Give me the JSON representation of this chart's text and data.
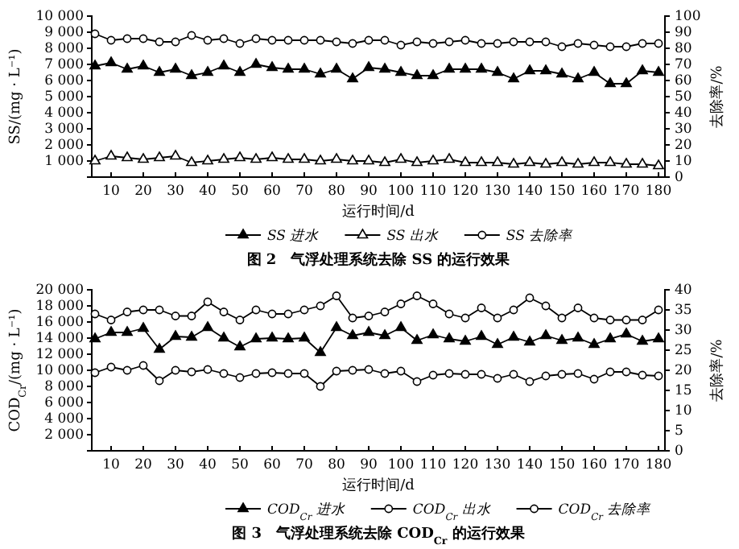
{
  "chart_data": [
    {
      "type": "line",
      "title": "图 2　气浮处理系统去除 SS 的运行效果",
      "xlabel": "运行时间/d",
      "ylabel": "SS/(mg · L⁻¹)",
      "y2label": "去除率/%",
      "x": [
        5,
        10,
        15,
        20,
        25,
        30,
        35,
        40,
        45,
        50,
        55,
        60,
        65,
        70,
        75,
        80,
        85,
        90,
        95,
        100,
        105,
        110,
        115,
        120,
        125,
        130,
        135,
        140,
        145,
        150,
        155,
        160,
        165,
        170,
        175,
        180
      ],
      "xlim": [
        4,
        182
      ],
      "xticks": [
        10,
        20,
        30,
        40,
        50,
        60,
        70,
        80,
        90,
        100,
        110,
        120,
        130,
        140,
        150,
        160,
        170,
        180
      ],
      "ylim": [
        0,
        10000
      ],
      "yticks": [
        {
          "value": 1000,
          "label": "1 000"
        },
        {
          "value": 2000,
          "label": "2 000"
        },
        {
          "value": 3000,
          "label": "3 000"
        },
        {
          "value": 4000,
          "label": "4 000"
        },
        {
          "value": 5000,
          "label": "5 000"
        },
        {
          "value": 6000,
          "label": "6 000"
        },
        {
          "value": 7000,
          "label": "7 000"
        },
        {
          "value": 8000,
          "label": "8 000"
        },
        {
          "value": 9000,
          "label": "9 000"
        },
        {
          "value": 10000,
          "label": "10 000"
        }
      ],
      "y2lim": [
        0,
        100
      ],
      "y2ticks": [
        0,
        10,
        20,
        30,
        40,
        50,
        60,
        70,
        80,
        90,
        100
      ],
      "legend": "bottom",
      "series": [
        {
          "name": "SS 进水",
          "color": "#000000",
          "marker": "triangle",
          "values": [
            6900,
            7100,
            6700,
            6900,
            6500,
            6700,
            6300,
            6500,
            6900,
            6500,
            7000,
            6800,
            6700,
            6700,
            6400,
            6700,
            6100,
            6800,
            6700,
            6500,
            6300,
            6300,
            6700,
            6700,
            6700,
            6500,
            6100,
            6600,
            6600,
            6400,
            6100,
            6500,
            5800,
            5800,
            6600,
            6500
          ]
        },
        {
          "name": "SS 出水",
          "color": "#000000",
          "marker": "triangle",
          "values": [
            1000,
            1300,
            1200,
            1100,
            1200,
            1300,
            900,
            1000,
            1100,
            1200,
            1100,
            1200,
            1100,
            1100,
            1000,
            1100,
            1000,
            1000,
            900,
            1100,
            900,
            1000,
            1100,
            900,
            900,
            900,
            800,
            900,
            800,
            900,
            800,
            900,
            900,
            800,
            800,
            700
          ]
        },
        {
          "name": "SS 去除率",
          "color": "#000000",
          "marker": "circle",
          "axis": "y2",
          "values": [
            89,
            85,
            86,
            86,
            84,
            84,
            88,
            85,
            86,
            83,
            86,
            85,
            85,
            85,
            85,
            84,
            83,
            85,
            85,
            82,
            84,
            83,
            84,
            85,
            83,
            83,
            84,
            84,
            84,
            81,
            83,
            82,
            81,
            81,
            83,
            83
          ]
        }
      ]
    },
    {
      "type": "line",
      "title": "图 3　气浮处理系统去除 COD$_{Cr}$ 的运行效果",
      "xlabel": "运行时间/d",
      "ylabel": "COD$_{Cr}$/(mg · L⁻¹)",
      "y2label": "去除率/%",
      "x": [
        5,
        10,
        15,
        20,
        25,
        30,
        35,
        40,
        45,
        50,
        55,
        60,
        65,
        70,
        75,
        80,
        85,
        90,
        95,
        100,
        105,
        110,
        115,
        120,
        125,
        130,
        135,
        140,
        145,
        150,
        155,
        160,
        165,
        170,
        175,
        180
      ],
      "xlim": [
        4,
        182
      ],
      "xticks": [
        10,
        20,
        30,
        40,
        50,
        60,
        70,
        80,
        90,
        100,
        110,
        120,
        130,
        140,
        150,
        160,
        170,
        180
      ],
      "ylim": [
        0,
        20000
      ],
      "yticks": [
        {
          "value": 2000,
          "label": "2 000"
        },
        {
          "value": 4000,
          "label": "4 000"
        },
        {
          "value": 6000,
          "label": "6 000"
        },
        {
          "value": 8000,
          "label": "8 000"
        },
        {
          "value": 10000,
          "label": "10 000"
        },
        {
          "value": 12000,
          "label": "12 000"
        },
        {
          "value": 14000,
          "label": "14 000"
        },
        {
          "value": 16000,
          "label": "16 000"
        },
        {
          "value": 18000,
          "label": "18 000"
        },
        {
          "value": 20000,
          "label": "20 000"
        }
      ],
      "y2lim": [
        0,
        40
      ],
      "y2ticks": [
        0,
        5,
        10,
        15,
        20,
        25,
        30,
        35,
        40
      ],
      "legend": "bottom",
      "series": [
        {
          "name": "COD$_{Cr}$ 进水",
          "color": "#000000",
          "marker": "triangle",
          "values": [
            13900,
            14700,
            14700,
            15200,
            12600,
            14200,
            14100,
            15300,
            14000,
            12900,
            13900,
            14000,
            13900,
            14000,
            12200,
            15300,
            14300,
            14700,
            14300,
            15300,
            13700,
            14400,
            13900,
            13600,
            14200,
            13200,
            14100,
            13500,
            14300,
            13700,
            14000,
            13200,
            13900,
            14500,
            13600,
            13900
          ]
        },
        {
          "name": "COD$_{Cr}$ 出水",
          "color": "#000000",
          "marker": "circle",
          "values": [
            9700,
            10400,
            10000,
            10600,
            8700,
            10000,
            9800,
            10100,
            9600,
            9100,
            9600,
            9700,
            9600,
            9600,
            8000,
            9900,
            10000,
            10100,
            9600,
            9900,
            8600,
            9400,
            9600,
            9500,
            9500,
            9000,
            9500,
            8600,
            9300,
            9500,
            9600,
            8900,
            9800,
            9800,
            9400,
            9300
          ]
        },
        {
          "name": "COD$_{Cr}$ 去除率",
          "color": "#000000",
          "marker": "circle",
          "axis": "y2",
          "values": [
            34,
            32.5,
            34.5,
            35,
            35,
            33.5,
            33.5,
            37,
            34.5,
            32.5,
            35,
            34,
            34,
            35,
            36,
            38.5,
            33,
            33.5,
            34.5,
            36.5,
            38.5,
            36.5,
            34,
            33,
            35.5,
            33,
            35,
            38,
            36,
            33,
            35.5,
            33,
            32.5,
            32.5,
            32.5,
            35
          ]
        }
      ]
    }
  ]
}
